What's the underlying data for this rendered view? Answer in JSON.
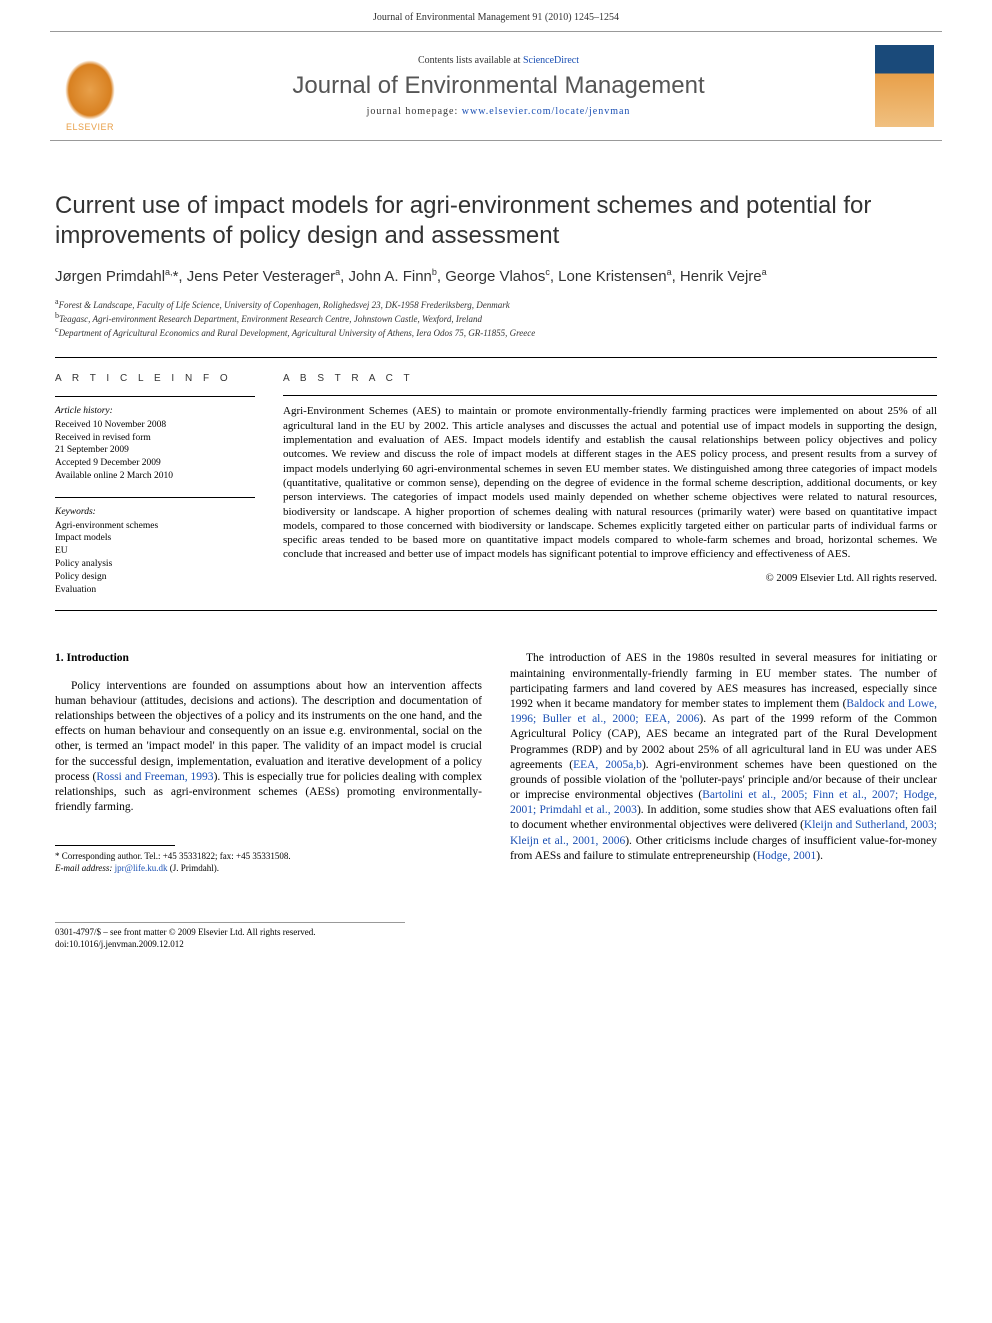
{
  "header": {
    "running_head": "Journal of Environmental Management 91 (2010) 1245–1254"
  },
  "banner": {
    "elsevier_label": "ELSEVIER",
    "contents_prefix": "Contents lists available at ",
    "contents_link": "ScienceDirect",
    "journal_name": "Journal of Environmental Management",
    "homepage_prefix": "journal homepage: ",
    "homepage_url": "www.elsevier.com/locate/jenvman"
  },
  "title": "Current use of impact models for agri-environment schemes and potential for improvements of policy design and assessment",
  "authors_html": "Jørgen Primdahl<sup>a,</sup>*, Jens Peter Vesterager<sup>a</sup>, John A. Finn<sup>b</sup>, George Vlahos<sup>c</sup>, Lone Kristensen<sup>a</sup>, Henrik Vejre<sup>a</sup>",
  "affiliations": [
    {
      "sup": "a",
      "text": "Forest & Landscape, Faculty of Life Science, University of Copenhagen, Rolighedsvej 23, DK-1958 Frederiksberg, Denmark"
    },
    {
      "sup": "b",
      "text": "Teagasc, Agri-environment Research Department, Environment Research Centre, Johnstown Castle, Wexford, Ireland"
    },
    {
      "sup": "c",
      "text": "Department of Agricultural Economics and Rural Development, Agricultural University of Athens, Iera Odos 75, GR-11855, Greece"
    }
  ],
  "article_info": {
    "label": "A R T I C L E   I N F O",
    "history_label": "Article history:",
    "history": [
      "Received 10 November 2008",
      "Received in revised form",
      "21 September 2009",
      "Accepted 9 December 2009",
      "Available online 2 March 2010"
    ],
    "keywords_label": "Keywords:",
    "keywords": [
      "Agri-environment schemes",
      "Impact models",
      "EU",
      "Policy analysis",
      "Policy design",
      "Evaluation"
    ]
  },
  "abstract": {
    "label": "A B S T R A C T",
    "text": "Agri-Environment Schemes (AES) to maintain or promote environmentally-friendly farming practices were implemented on about 25% of all agricultural land in the EU by 2002. This article analyses and discusses the actual and potential use of impact models in supporting the design, implementation and evaluation of AES. Impact models identify and establish the causal relationships between policy objectives and policy outcomes. We review and discuss the role of impact models at different stages in the AES policy process, and present results from a survey of impact models underlying 60 agri-environmental schemes in seven EU member states. We distinguished among three categories of impact models (quantitative, qualitative or common sense), depending on the degree of evidence in the formal scheme description, additional documents, or key person interviews. The categories of impact models used mainly depended on whether scheme objectives were related to natural resources, biodiversity or landscape. A higher proportion of schemes dealing with natural resources (primarily water) were based on quantitative impact models, compared to those concerned with biodiversity or landscape. Schemes explicitly targeted either on particular parts of individual farms or specific areas tended to be based more on quantitative impact models compared to whole-farm schemes and broad, horizontal schemes. We conclude that increased and better use of impact models has significant potential to improve efficiency and effectiveness of AES.",
    "copyright": "© 2009 Elsevier Ltd. All rights reserved."
  },
  "body": {
    "section_heading": "1. Introduction",
    "col1_para": "Policy interventions are founded on assumptions about how an intervention affects human behaviour (attitudes, decisions and actions). The description and documentation of relationships between the objectives of a policy and its instruments on the one hand, and the effects on human behaviour and consequently on an issue e.g. environmental, social on the other, is termed an 'impact model' in this paper. The validity of an impact model is crucial for the successful design, implementation, evaluation and iterative development of a policy process (<span class=\"cite\">Rossi and Freeman, 1993</span>). This is especially true for policies dealing with complex relationships, such as agri-environment schemes (AESs) promoting environmentally-friendly farming.",
    "col2_para": "The introduction of AES in the 1980s resulted in several measures for initiating or maintaining environmentally-friendly farming in EU member states. The number of participating farmers and land covered by AES measures has increased, especially since 1992 when it became mandatory for member states to implement them (<span class=\"cite\">Baldock and Lowe, 1996; Buller et al., 2000; EEA, 2006</span>). As part of the 1999 reform of the Common Agricultural Policy (CAP), AES became an integrated part of the Rural Development Programmes (RDP) and by 2002 about 25% of all agricultural land in EU was under AES agreements (<span class=\"cite\">EEA, 2005a,b</span>). Agri-environment schemes have been questioned on the grounds of possible violation of the 'polluter-pays' principle and/or because of their unclear or imprecise environmental objectives (<span class=\"cite\">Bartolini et al., 2005; Finn et al., 2007; Hodge, 2001; Primdahl et al., 2003</span>). In addition, some studies show that AES evaluations often fail to document whether environmental objectives were delivered (<span class=\"cite\">Kleijn and Sutherland, 2003; Kleijn et al., 2001, 2006</span>). Other criticisms include charges of insufficient value-for-money from AESs and failure to stimulate entrepreneurship (<span class=\"cite\">Hodge, 2001</span>)."
  },
  "footnotes": {
    "corr": "* Corresponding author. Tel.: +45 35331822; fax: +45 35331508.",
    "email_label": "E-mail address:",
    "email": "jpr@life.ku.dk",
    "email_suffix": "(J. Primdahl)."
  },
  "footer": {
    "line1": "0301-4797/$ – see front matter © 2009 Elsevier Ltd. All rights reserved.",
    "line2": "doi:10.1016/j.jenvman.2009.12.012"
  },
  "colors": {
    "link": "#1a4fb3",
    "elsevier_orange": "#e8a04a",
    "cover_blue": "#1a4a7a"
  }
}
